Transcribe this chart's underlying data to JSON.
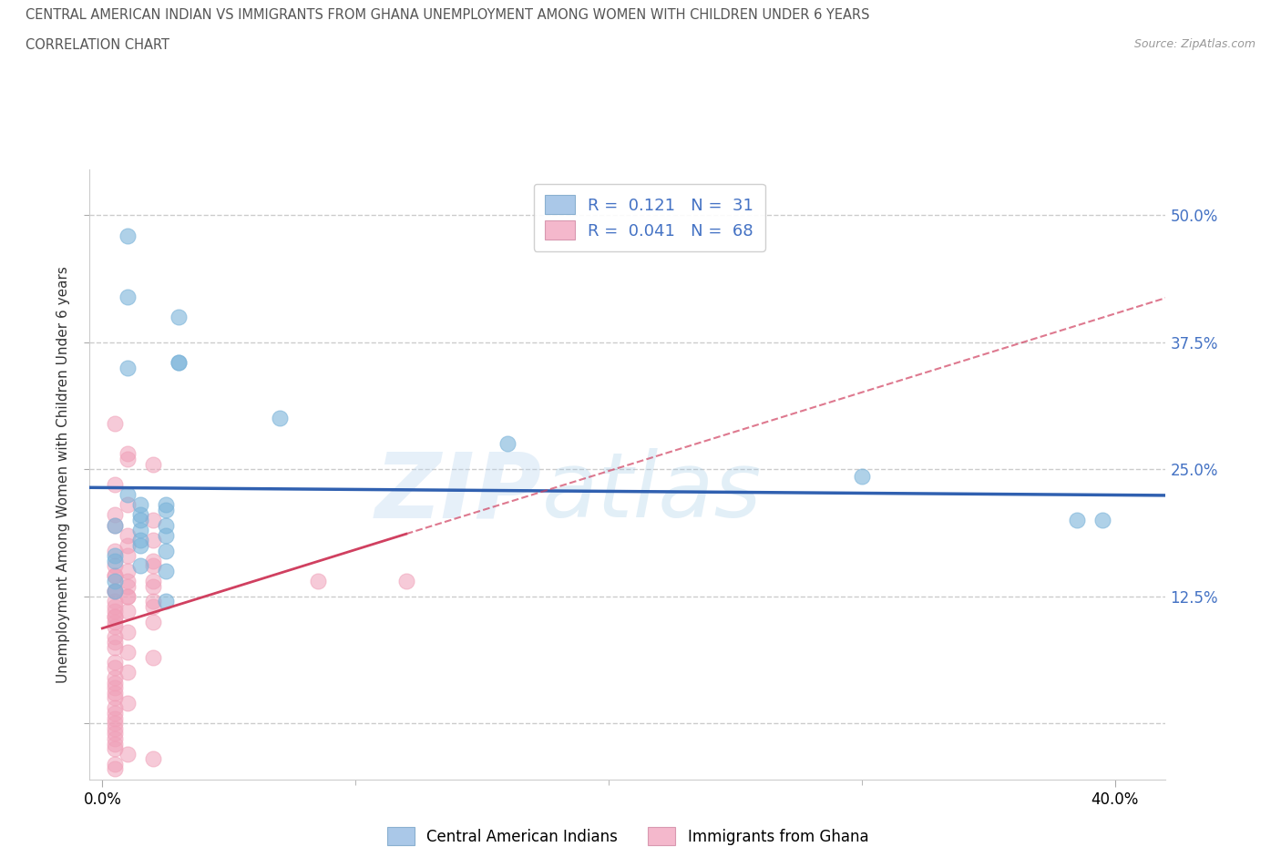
{
  "title_line1": "CENTRAL AMERICAN INDIAN VS IMMIGRANTS FROM GHANA UNEMPLOYMENT AMONG WOMEN WITH CHILDREN UNDER 6 YEARS",
  "title_line2": "CORRELATION CHART",
  "source": "Source: ZipAtlas.com",
  "ylabel": "Unemployment Among Women with Children Under 6 years",
  "yticks": [
    0.0,
    0.125,
    0.25,
    0.375,
    0.5
  ],
  "ytick_labels": [
    "",
    "12.5%",
    "25.0%",
    "37.5%",
    "50.0%"
  ],
  "xlim": [
    -0.005,
    0.42
  ],
  "ylim": [
    -0.055,
    0.545
  ],
  "blue_color": "#7ab3d9",
  "pink_color": "#f0a0b8",
  "blue_line_color": "#3060b0",
  "pink_line_color": "#d04060",
  "watermark_zip": "ZIP",
  "watermark_atlas": "atlas",
  "blue_R": 0.121,
  "blue_N": 31,
  "pink_R": 0.041,
  "pink_N": 68,
  "blue_points": [
    [
      0.01,
      0.48
    ],
    [
      0.03,
      0.4
    ],
    [
      0.01,
      0.42
    ],
    [
      0.01,
      0.35
    ],
    [
      0.03,
      0.355
    ],
    [
      0.07,
      0.3
    ],
    [
      0.03,
      0.355
    ],
    [
      0.16,
      0.275
    ],
    [
      0.3,
      0.243
    ],
    [
      0.01,
      0.225
    ],
    [
      0.015,
      0.215
    ],
    [
      0.025,
      0.215
    ],
    [
      0.025,
      0.21
    ],
    [
      0.015,
      0.205
    ],
    [
      0.015,
      0.2
    ],
    [
      0.025,
      0.195
    ],
    [
      0.005,
      0.195
    ],
    [
      0.015,
      0.19
    ],
    [
      0.025,
      0.185
    ],
    [
      0.015,
      0.18
    ],
    [
      0.015,
      0.175
    ],
    [
      0.025,
      0.17
    ],
    [
      0.005,
      0.165
    ],
    [
      0.005,
      0.16
    ],
    [
      0.015,
      0.155
    ],
    [
      0.025,
      0.15
    ],
    [
      0.005,
      0.14
    ],
    [
      0.005,
      0.13
    ],
    [
      0.025,
      0.12
    ],
    [
      0.385,
      0.2
    ],
    [
      0.395,
      0.2
    ]
  ],
  "pink_points": [
    [
      0.005,
      0.295
    ],
    [
      0.01,
      0.265
    ],
    [
      0.01,
      0.26
    ],
    [
      0.02,
      0.255
    ],
    [
      0.005,
      0.235
    ],
    [
      0.01,
      0.215
    ],
    [
      0.005,
      0.205
    ],
    [
      0.02,
      0.2
    ],
    [
      0.01,
      0.185
    ],
    [
      0.02,
      0.18
    ],
    [
      0.01,
      0.175
    ],
    [
      0.005,
      0.17
    ],
    [
      0.01,
      0.165
    ],
    [
      0.02,
      0.16
    ],
    [
      0.005,
      0.155
    ],
    [
      0.01,
      0.15
    ],
    [
      0.005,
      0.145
    ],
    [
      0.01,
      0.14
    ],
    [
      0.02,
      0.135
    ],
    [
      0.005,
      0.13
    ],
    [
      0.01,
      0.125
    ],
    [
      0.02,
      0.12
    ],
    [
      0.005,
      0.115
    ],
    [
      0.01,
      0.11
    ],
    [
      0.005,
      0.105
    ],
    [
      0.005,
      0.1
    ],
    [
      0.02,
      0.1
    ],
    [
      0.005,
      0.095
    ],
    [
      0.01,
      0.09
    ],
    [
      0.005,
      0.085
    ],
    [
      0.005,
      0.08
    ],
    [
      0.005,
      0.075
    ],
    [
      0.01,
      0.07
    ],
    [
      0.02,
      0.065
    ],
    [
      0.005,
      0.06
    ],
    [
      0.005,
      0.055
    ],
    [
      0.01,
      0.05
    ],
    [
      0.005,
      0.045
    ],
    [
      0.005,
      0.04
    ],
    [
      0.005,
      0.035
    ],
    [
      0.005,
      0.03
    ],
    [
      0.005,
      0.025
    ],
    [
      0.01,
      0.02
    ],
    [
      0.005,
      0.015
    ],
    [
      0.005,
      0.01
    ],
    [
      0.005,
      0.005
    ],
    [
      0.005,
      0.0
    ],
    [
      0.005,
      -0.005
    ],
    [
      0.005,
      -0.01
    ],
    [
      0.005,
      -0.015
    ],
    [
      0.005,
      -0.02
    ],
    [
      0.005,
      -0.025
    ],
    [
      0.01,
      -0.03
    ],
    [
      0.02,
      -0.035
    ],
    [
      0.005,
      -0.04
    ],
    [
      0.005,
      -0.045
    ],
    [
      0.01,
      0.135
    ],
    [
      0.085,
      0.14
    ],
    [
      0.005,
      0.145
    ],
    [
      0.02,
      0.155
    ],
    [
      0.005,
      0.195
    ],
    [
      0.02,
      0.14
    ],
    [
      0.005,
      0.13
    ],
    [
      0.01,
      0.125
    ],
    [
      0.005,
      0.12
    ],
    [
      0.02,
      0.115
    ],
    [
      0.005,
      0.11
    ],
    [
      0.005,
      0.105
    ],
    [
      0.12,
      0.14
    ]
  ],
  "pink_solid_xlim": [
    0.0,
    0.12
  ],
  "pink_dash_xlim": [
    0.12,
    0.42
  ]
}
